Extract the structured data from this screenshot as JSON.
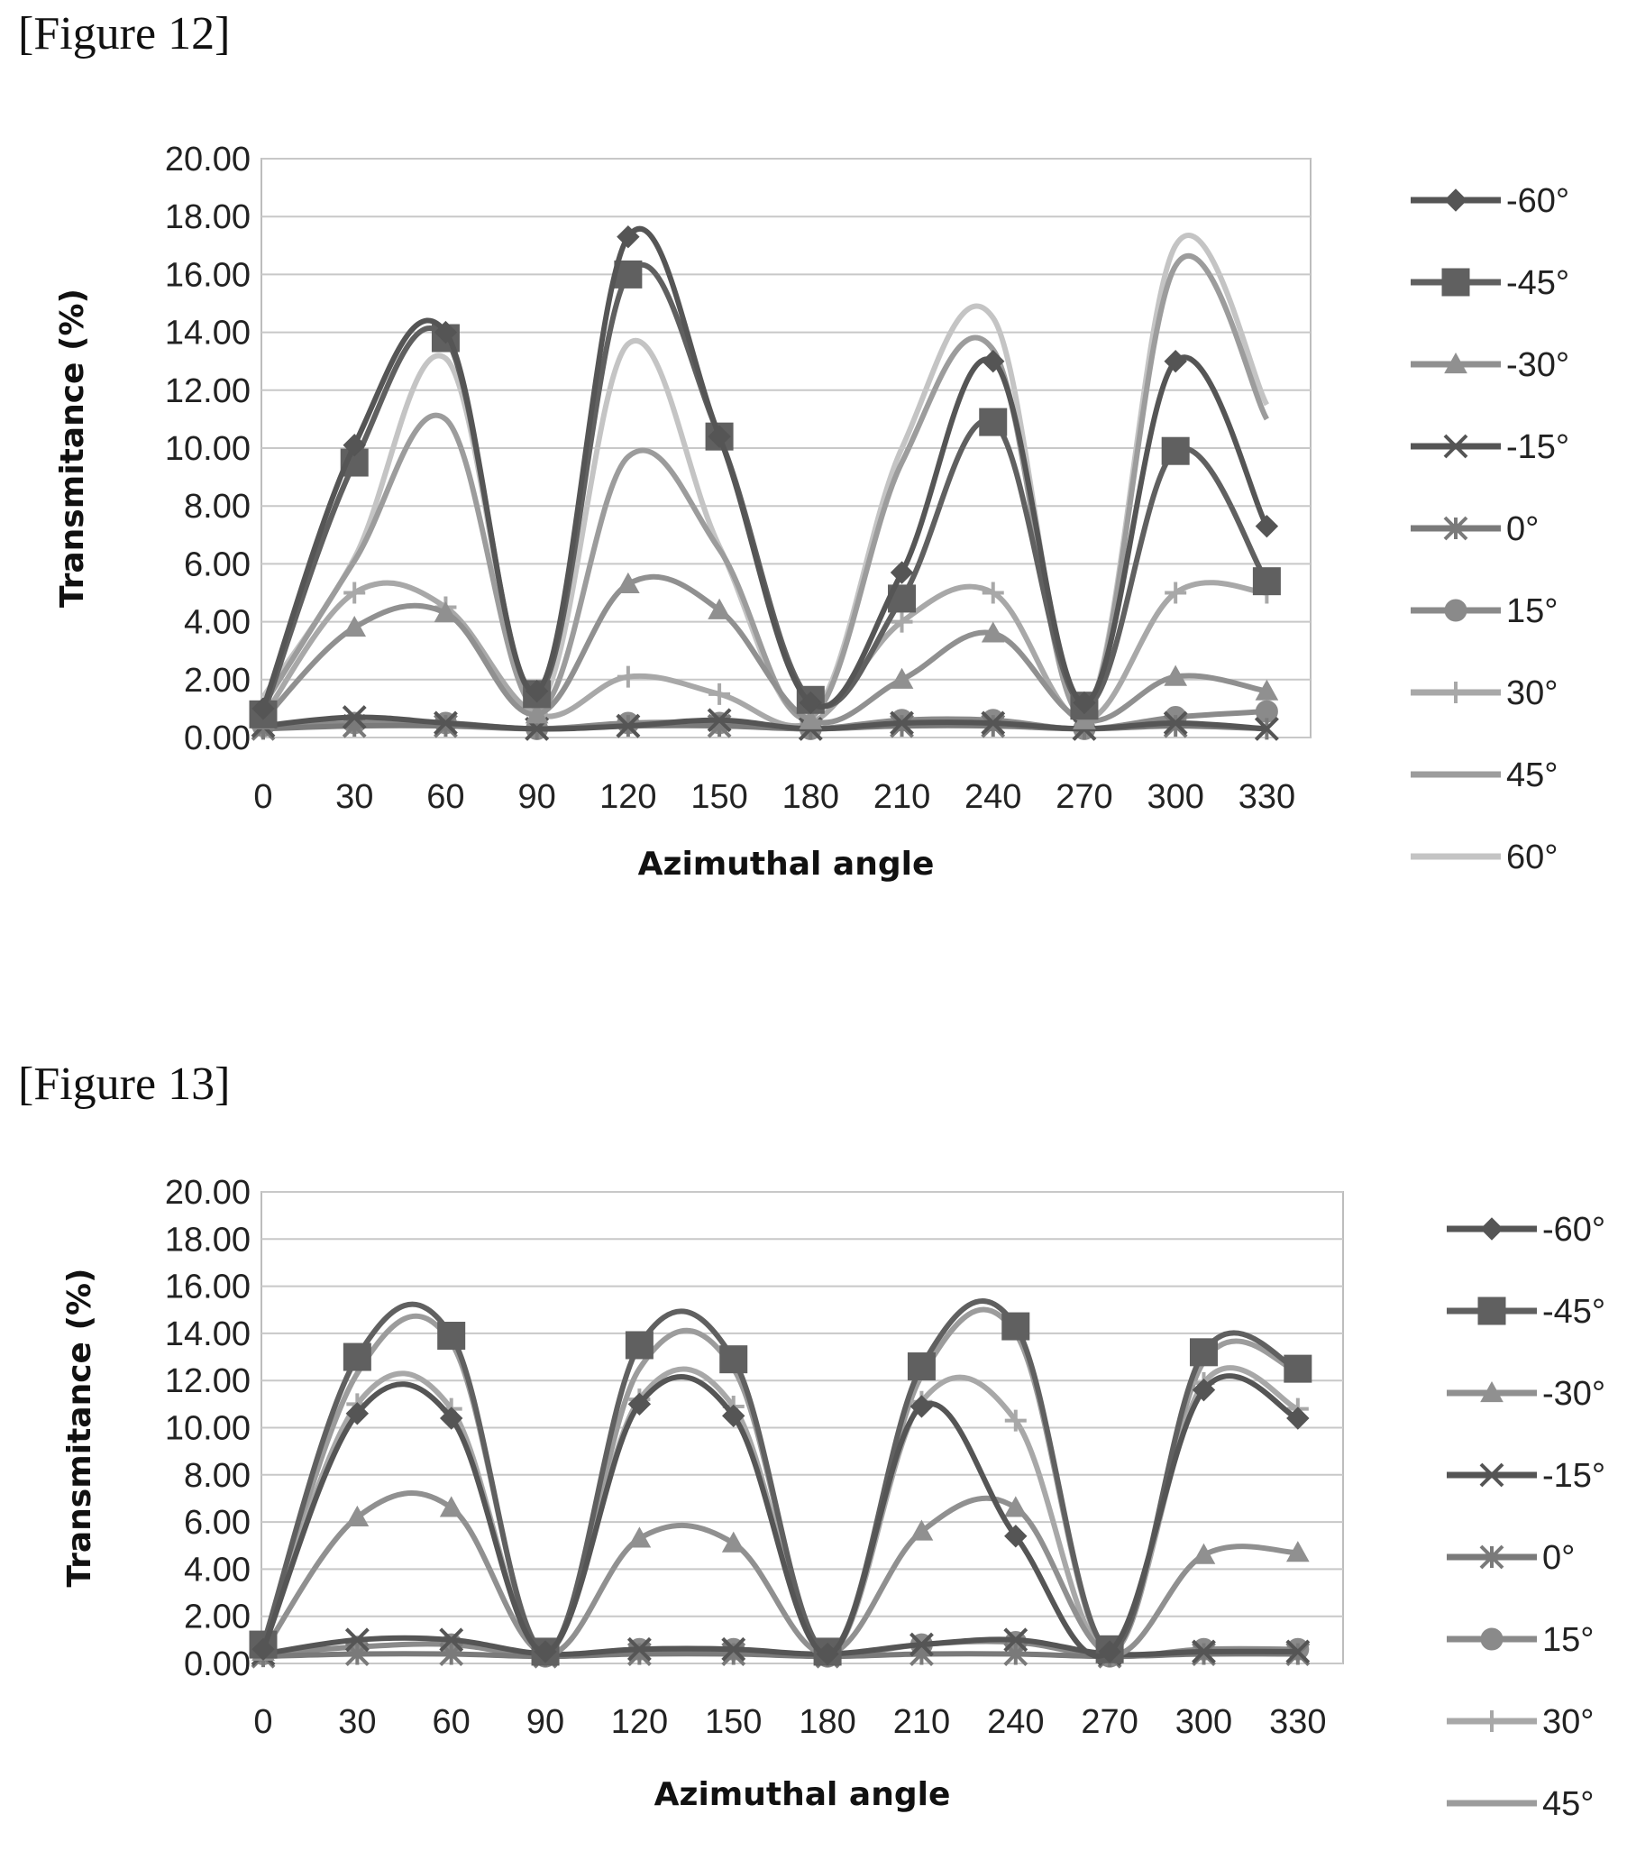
{
  "figures": [
    {
      "caption": "[Figure 12]"
    },
    {
      "caption": "[Figure 13]"
    }
  ],
  "chart_data": [
    {
      "type": "line",
      "xlabel": "Azimuthal angle",
      "ylabel": "Transmitance (%)",
      "ylim": [
        0,
        20
      ],
      "yticks": [
        "0.00",
        "2.00",
        "4.00",
        "6.00",
        "8.00",
        "10.00",
        "12.00",
        "14.00",
        "16.00",
        "18.00",
        "20.00"
      ],
      "categories": [
        "0",
        "30",
        "60",
        "90",
        "120",
        "150",
        "180",
        "210",
        "240",
        "270",
        "300",
        "330"
      ],
      "grid": true,
      "legend_position": "right",
      "series": [
        {
          "name": "-60°",
          "marker": "diamond",
          "color": "#555555",
          "values": [
            1.0,
            10.1,
            14.0,
            1.6,
            17.3,
            10.4,
            1.2,
            5.7,
            13.0,
            1.2,
            13.0,
            7.3
          ]
        },
        {
          "name": "-45°",
          "marker": "square",
          "color": "#606060",
          "values": [
            0.8,
            9.5,
            13.8,
            1.5,
            16.0,
            10.4,
            1.3,
            4.8,
            10.9,
            1.1,
            9.9,
            5.4
          ]
        },
        {
          "name": "-30°",
          "marker": "triangle",
          "color": "#909090",
          "values": [
            0.6,
            3.8,
            4.3,
            0.8,
            5.3,
            4.4,
            0.6,
            2.0,
            3.6,
            0.6,
            2.1,
            1.6
          ]
        },
        {
          "name": "-15°",
          "marker": "x",
          "color": "#555555",
          "values": [
            0.4,
            0.7,
            0.5,
            0.3,
            0.4,
            0.6,
            0.3,
            0.5,
            0.5,
            0.3,
            0.5,
            0.3
          ]
        },
        {
          "name": "0°",
          "marker": "star",
          "color": "#7a7a7a",
          "values": [
            0.3,
            0.4,
            0.4,
            0.3,
            0.4,
            0.4,
            0.3,
            0.4,
            0.4,
            0.3,
            0.4,
            0.3
          ]
        },
        {
          "name": "15°",
          "marker": "circle",
          "color": "#8a8a8a",
          "values": [
            0.4,
            0.5,
            0.5,
            0.3,
            0.5,
            0.5,
            0.3,
            0.6,
            0.6,
            0.3,
            0.7,
            0.9
          ]
        },
        {
          "name": "30°",
          "marker": "plus",
          "color": "#a8a8a8",
          "values": [
            0.7,
            5.0,
            4.5,
            0.8,
            2.1,
            1.5,
            0.5,
            4.0,
            5.0,
            0.6,
            5.0,
            5.0
          ]
        },
        {
          "name": "45°",
          "marker": "none",
          "color": "#9c9c9c",
          "values": [
            1.1,
            6.1,
            11.0,
            1.0,
            9.7,
            6.5,
            0.7,
            9.5,
            13.4,
            0.8,
            16.3,
            11.0
          ]
        },
        {
          "name": "60°",
          "marker": "none",
          "color": "#c4c4c4",
          "values": [
            1.4,
            6.2,
            13.1,
            1.2,
            13.6,
            6.6,
            0.8,
            10.0,
            14.5,
            0.9,
            17.0,
            11.5
          ]
        }
      ]
    },
    {
      "type": "line",
      "xlabel": "Azimuthal angle",
      "ylabel": "Transmitance (%)",
      "ylim": [
        0,
        20
      ],
      "yticks": [
        "0.00",
        "2.00",
        "4.00",
        "6.00",
        "8.00",
        "10.00",
        "12.00",
        "14.00",
        "16.00",
        "18.00",
        "20.00"
      ],
      "categories": [
        "0",
        "30",
        "60",
        "90",
        "120",
        "150",
        "180",
        "210",
        "240",
        "270",
        "300",
        "330"
      ],
      "grid": true,
      "legend_position": "right",
      "series": [
        {
          "name": "-60°",
          "marker": "diamond",
          "color": "#555555",
          "values": [
            0.6,
            10.6,
            10.4,
            0.5,
            11.0,
            10.5,
            0.4,
            10.9,
            5.4,
            0.5,
            11.6,
            10.4
          ]
        },
        {
          "name": "-45°",
          "marker": "square",
          "color": "#606060",
          "values": [
            0.8,
            13.0,
            13.9,
            0.5,
            13.5,
            12.9,
            0.5,
            12.6,
            14.3,
            0.6,
            13.2,
            12.5
          ]
        },
        {
          "name": "-30°",
          "marker": "triangle",
          "color": "#909090",
          "values": [
            0.5,
            6.2,
            6.6,
            0.4,
            5.3,
            5.1,
            0.4,
            5.6,
            6.6,
            0.4,
            4.6,
            4.7
          ]
        },
        {
          "name": "-15°",
          "marker": "x",
          "color": "#555555",
          "values": [
            0.4,
            1.0,
            1.0,
            0.4,
            0.6,
            0.6,
            0.4,
            0.8,
            1.0,
            0.4,
            0.5,
            0.5
          ]
        },
        {
          "name": "0°",
          "marker": "star",
          "color": "#7a7a7a",
          "values": [
            0.3,
            0.4,
            0.4,
            0.3,
            0.4,
            0.4,
            0.3,
            0.4,
            0.4,
            0.3,
            0.4,
            0.4
          ]
        },
        {
          "name": "15°",
          "marker": "circle",
          "color": "#8a8a8a",
          "values": [
            0.4,
            0.7,
            0.8,
            0.3,
            0.6,
            0.6,
            0.3,
            0.8,
            0.9,
            0.3,
            0.6,
            0.6
          ]
        },
        {
          "name": "30°",
          "marker": "plus",
          "color": "#a8a8a8",
          "values": [
            0.6,
            11.0,
            10.8,
            0.5,
            11.2,
            10.9,
            0.4,
            11.1,
            10.3,
            0.5,
            11.9,
            10.8
          ]
        },
        {
          "name": "45°",
          "marker": "none",
          "color": "#9c9c9c",
          "values": [
            0.7,
            12.3,
            13.6,
            0.5,
            12.5,
            12.5,
            0.5,
            12.2,
            14.0,
            0.5,
            12.8,
            12.4
          ]
        }
      ]
    }
  ]
}
